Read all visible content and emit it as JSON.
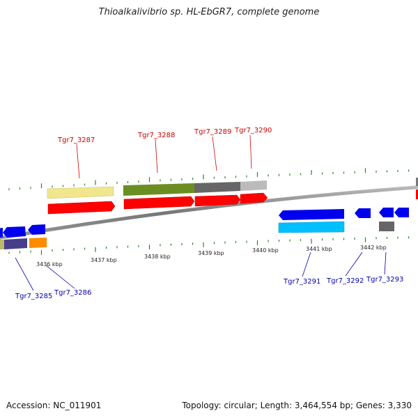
{
  "title": "Thioalkalivibrio sp. HL-EbGR7, complete genome",
  "footer": {
    "accession": "Accession: NC_011901",
    "topology": "Topology: circular; Length: 3,464,554 bp; Genes: 3,330"
  },
  "scale_labels": [
    "3436 kbp",
    "3437 kbp",
    "3438 kbp",
    "3439 kbp",
    "3440 kbp",
    "3441 kbp",
    "3442 kbp"
  ],
  "gene_labels_top": [
    "Tgr7_3287",
    "Tgr7_3288",
    "Tgr7_3289",
    "Tgr7_3290"
  ],
  "gene_labels_bottom": [
    "Tgr7_3285",
    "Tgr7_3286",
    "Tgr7_3291",
    "Tgr7_3292",
    "Tgr7_3293"
  ],
  "colors": {
    "cds_forward": "#ff0000",
    "cds_reverse": "#0000ee",
    "backbone": "#888888",
    "tick": "#228822",
    "label_forward": "#cc0000",
    "label_reverse": "#0000aa"
  }
}
